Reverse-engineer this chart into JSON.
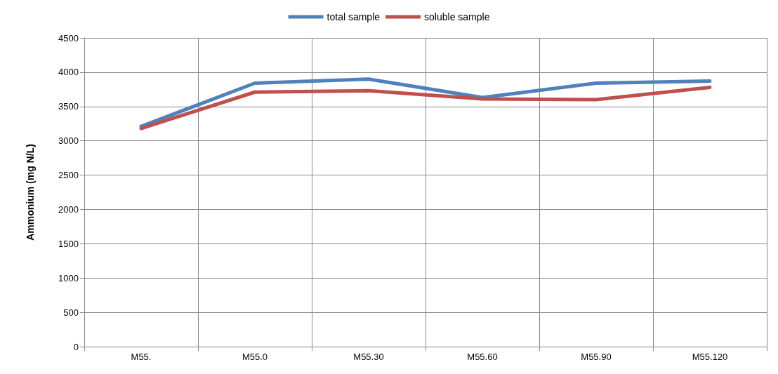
{
  "chart_data": {
    "type": "line",
    "ylabel": "Ammonium (mg N/L)",
    "categories": [
      "M55.",
      "M55.0",
      "M55.30",
      "M55.60",
      "M55.90",
      "M55.120"
    ],
    "series": [
      {
        "name": "total sample",
        "color": "#4f81bd",
        "values": [
          3210,
          3840,
          3900,
          3630,
          3840,
          3870
        ]
      },
      {
        "name": "soluble sample",
        "color": "#c0504d",
        "values": [
          3180,
          3710,
          3730,
          3610,
          3600,
          3780
        ]
      }
    ],
    "ylim": [
      0,
      4500
    ],
    "yticks": [
      0,
      500,
      1000,
      1500,
      2000,
      2500,
      3000,
      3500,
      4000,
      4500
    ],
    "grid": true,
    "legend": "top",
    "marker": "none",
    "line_style": "solid"
  }
}
